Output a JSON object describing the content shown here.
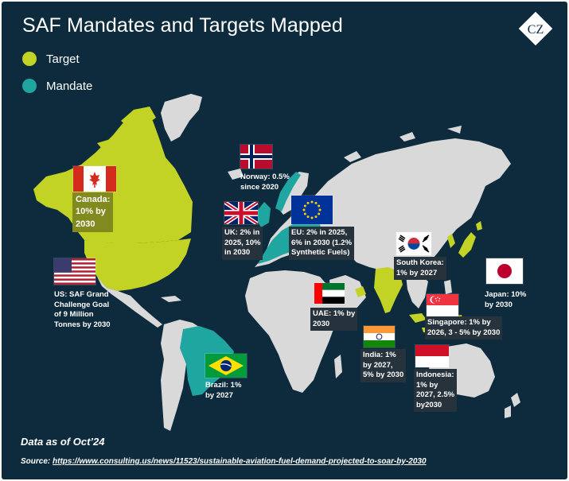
{
  "title": "SAF Mandates and Targets Mapped",
  "logo_text": "CZ",
  "legend": [
    {
      "label": "Target",
      "color": "#c3d326"
    },
    {
      "label": "Mandate",
      "color": "#1fa6a0"
    }
  ],
  "colors": {
    "background": "#0e2b3d",
    "land": "#d9d9d9",
    "target": "#c3d326",
    "mandate": "#1fa6a0"
  },
  "countries": [
    {
      "id": "canada",
      "name": "Canada",
      "status": "Target",
      "label": "Canada:\n10% by\n2030",
      "flag": "canada-flag"
    },
    {
      "id": "us",
      "name": "US",
      "status": "Target",
      "label": "US: SAF Grand\nChallenge Goal\nof 9 Million\nTonnes by 2030",
      "flag": "us-flag"
    },
    {
      "id": "norway",
      "name": "Norway",
      "status": "Mandate",
      "label": "Norway: 0.5%\nsince 2020",
      "flag": "norway-flag"
    },
    {
      "id": "uk",
      "name": "UK",
      "status": "Mandate",
      "label": "UK: 2% in\n2025, 10%\nin 2030",
      "flag": "uk-flag"
    },
    {
      "id": "eu",
      "name": "EU",
      "status": "Mandate",
      "label": "EU: 2% in 2025,\n6% in 2030 (1.2%\nSynthetic Fuels)",
      "flag": "eu-flag"
    },
    {
      "id": "south-korea",
      "name": "South Korea",
      "status": "Target",
      "label": "South Korea:\n1% by 2027",
      "flag": "south-korea-flag"
    },
    {
      "id": "japan",
      "name": "Japan",
      "status": "Target",
      "label": "Japan: 10%\nby 2030",
      "flag": "japan-flag"
    },
    {
      "id": "uae",
      "name": "UAE",
      "status": "Target",
      "label": "UAE: 1% by\n2030",
      "flag": "uae-flag"
    },
    {
      "id": "singapore",
      "name": "Singapore",
      "status": "Target",
      "label": "Singapore: 1% by\n2026, 3 - 5% by 2030",
      "flag": "singapore-flag"
    },
    {
      "id": "india",
      "name": "India",
      "status": "Target",
      "label": "India: 1%\nby 2027,\n5% by 2030",
      "flag": "india-flag"
    },
    {
      "id": "indonesia",
      "name": "Indonesia",
      "status": "Target",
      "label": "Indonesia:\n1% by\n2027, 2.5%\nby2030",
      "flag": "indonesia-flag"
    },
    {
      "id": "brazil",
      "name": "Brazil",
      "status": "Mandate",
      "label": "Brazil: 1%\nby 2027",
      "flag": "brazil-flag"
    }
  ],
  "footer": {
    "note": "Data as of Oct’24",
    "source_prefix": "Source: ",
    "source_link": "https://www.consulting.us/news/11523/sustainable-aviation-fuel-demand-projected-to-soar-by-2030"
  }
}
